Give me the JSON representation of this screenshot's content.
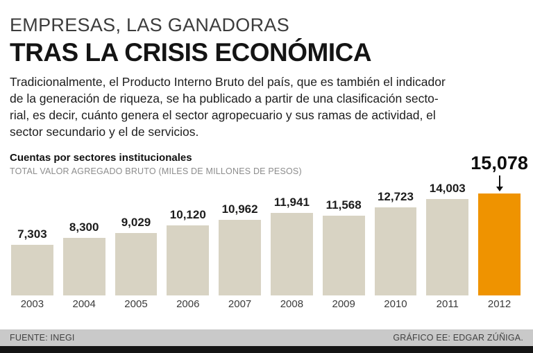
{
  "header": {
    "title_line1": "EMPRESAS, LAS GANADORAS",
    "title_line2": "TRAS LA CRISIS ECONÓMICA",
    "paragraph_lines": [
      "Tradicionalmente, el Producto Interno Bruto del país, que es también el indicador",
      "de la generación de riqueza, se ha publicado a partir de una clasificación secto-",
      "rial, es decir, cuánto genera el sector agropecuario y sus ramas de actividad, el",
      "sector secundario y el de servicios."
    ]
  },
  "chart": {
    "subtitle": "Cuentas por sectores institucionales",
    "axis_label": "TOTAL VALOR AGREGADO BRUTO (MILES DE MILLONES DE PESOS)"
  },
  "chart_data": {
    "type": "bar",
    "title": "Cuentas por sectores institucionales",
    "ylabel": "TOTAL VALOR AGREGADO BRUTO (MILES DE MILLONES DE PESOS)",
    "categories": [
      "2003",
      "2004",
      "2005",
      "2006",
      "2007",
      "2008",
      "2009",
      "2010",
      "2011",
      "2012"
    ],
    "values": [
      7303,
      8300,
      9029,
      10120,
      10962,
      11941,
      11568,
      12723,
      14003,
      15078
    ],
    "value_labels": [
      "7,303",
      "8,300",
      "9,029",
      "10,120",
      "10,962",
      "11,941",
      "11,568",
      "12,723",
      "14,003",
      "15,078"
    ],
    "highlight_index": 9,
    "bar_color": "#d8d3c3",
    "highlight_color": "#ef9300",
    "ylim": [
      0,
      15078
    ],
    "grid": false,
    "legend": false
  },
  "footer": {
    "source": "FUENTE: INEGI",
    "credit": "GRÁFICO EE: EDGAR ZÚÑIGA."
  }
}
